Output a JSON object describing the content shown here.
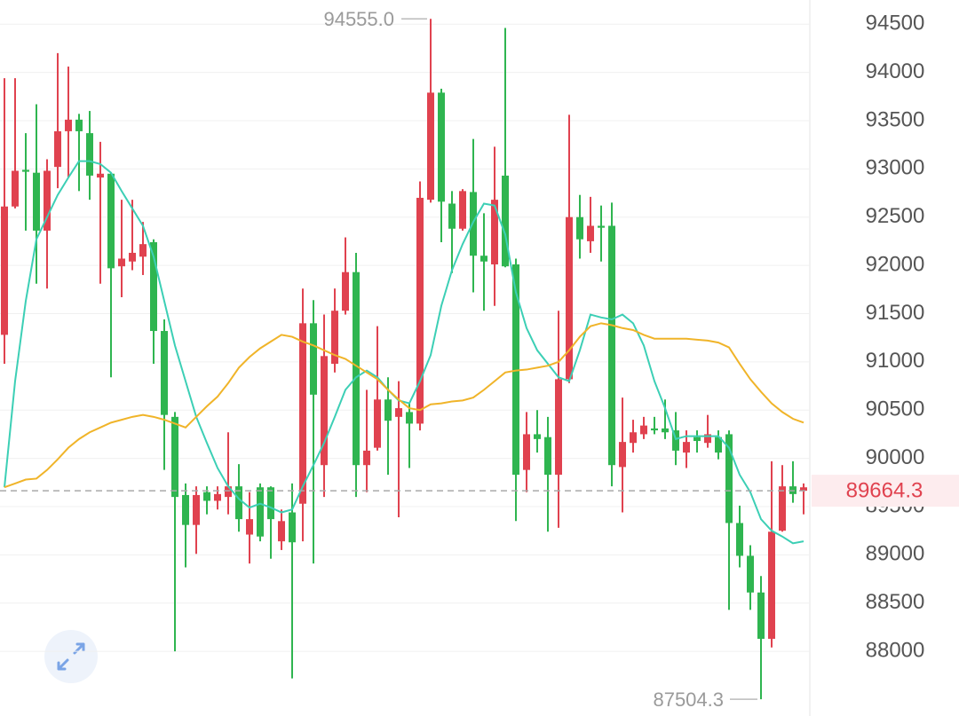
{
  "chart_data": {
    "type": "candlestick",
    "ylim": [
      87330,
      94750
    ],
    "yticks": [
      88000,
      88500,
      89000,
      89500,
      90000,
      90500,
      91000,
      91500,
      92000,
      92500,
      93000,
      93500,
      94000,
      94500
    ],
    "grid": true,
    "up_color": "#2fb550",
    "down_color": "#e0424f",
    "candles": {
      "open": [
        92610,
        92980,
        92970,
        92360,
        92980,
        93390,
        93510,
        93390,
        92930,
        92950,
        91970,
        92070,
        92130,
        92220,
        91320,
        90450,
        89600,
        89310,
        89620,
        89560,
        89630,
        89710,
        89370,
        89370,
        89190,
        89370,
        89350,
        89130,
        91400,
        90660,
        91060,
        91530,
        91930,
        89930,
        90080,
        90610,
        90390,
        90520,
        90360,
        92700,
        93790,
        92660,
        92380,
        92770,
        92100,
        92040,
        92680,
        91990,
        89830,
        90250,
        90200,
        89830,
        90820,
        92500,
        92270,
        92410,
        92390,
        89930,
        90170,
        90270,
        90340,
        90290,
        90270,
        90080,
        90170,
        90180,
        90250,
        90060,
        89330,
        88990,
        88610,
        88130,
        89240,
        89710,
        89630,
        89700
      ],
      "high": [
        93940,
        93940,
        93370,
        93670,
        93100,
        94200,
        94060,
        93570,
        93600,
        93280,
        92960,
        92680,
        92680,
        92450,
        92270,
        91440,
        90480,
        89740,
        89710,
        89710,
        89710,
        90270,
        89940,
        89650,
        89740,
        89710,
        89470,
        89740,
        91760,
        91640,
        91490,
        91760,
        92290,
        92130,
        90710,
        91370,
        90840,
        90800,
        90570,
        92870,
        94555,
        93830,
        92770,
        92790,
        93310,
        92540,
        93230,
        94460,
        92070,
        90480,
        90500,
        90430,
        91530,
        93560,
        92730,
        92710,
        92620,
        92650,
        90630,
        90400,
        90430,
        90430,
        90610,
        90480,
        90290,
        90290,
        90450,
        90290,
        90290,
        89510,
        89100,
        88780,
        89970,
        89930,
        89970,
        89740
      ],
      "low": [
        90980,
        92590,
        92360,
        91810,
        91760,
        92800,
        92910,
        92770,
        92680,
        91810,
        90840,
        91670,
        91950,
        91900,
        90980,
        89880,
        88000,
        88870,
        89010,
        89420,
        89470,
        89420,
        89240,
        88910,
        89140,
        88960,
        89050,
        87720,
        89140,
        88910,
        89600,
        90890,
        91490,
        89600,
        89650,
        90080,
        89830,
        89390,
        89900,
        90290,
        92650,
        92240,
        91920,
        92360,
        91720,
        91530,
        91580,
        91980,
        89350,
        89650,
        90060,
        89240,
        89280,
        90780,
        92070,
        92130,
        92040,
        89710,
        89440,
        90060,
        90200,
        90250,
        90200,
        89930,
        89900,
        90060,
        90110,
        89990,
        88430,
        88870,
        88430,
        87504,
        88040,
        89240,
        89540,
        89420
      ],
      "close": [
        91280,
        92610,
        92990,
        92960,
        92360,
        93020,
        93390,
        93510,
        93370,
        92910,
        92950,
        91990,
        92040,
        92090,
        92240,
        91320,
        90430,
        89620,
        89310,
        89650,
        89560,
        89600,
        89710,
        89210,
        89700,
        89700,
        89140,
        89440,
        89530,
        91400,
        89930,
        90980,
        91530,
        91930,
        89930,
        90110,
        90610,
        90430,
        90480,
        90360,
        92680,
        93790,
        92640,
        92380,
        92760,
        92100,
        92010,
        92930,
        92010,
        89880,
        90250,
        90220,
        89830,
        90820,
        92500,
        92250,
        92410,
        92410,
        89910,
        90160,
        90250,
        90310,
        90310,
        90290,
        90060,
        90220,
        90160,
        90220,
        90250,
        89330,
        88990,
        88610,
        88130,
        89250,
        89710,
        89664.3
      ]
    },
    "ma": [
      {
        "color": "#3ccfb5",
        "values": [
          89700,
          90800,
          91630,
          92270,
          92500,
          92730,
          92910,
          93080,
          93080,
          93050,
          92960,
          92770,
          92590,
          92410,
          92090,
          91630,
          91170,
          90800,
          90430,
          90160,
          89900,
          89710,
          89580,
          89490,
          89530,
          89490,
          89440,
          89470,
          89710,
          89930,
          90160,
          90430,
          90710,
          90840,
          90910,
          90840,
          90710,
          90600,
          90570,
          90800,
          91070,
          91580,
          91950,
          92220,
          92450,
          92640,
          92620,
          92320,
          91720,
          91350,
          91120,
          90980,
          90840,
          90800,
          91120,
          91490,
          91460,
          91440,
          91490,
          91400,
          91170,
          90800,
          90520,
          90200,
          90230,
          90230,
          90230,
          90230,
          90110,
          89830,
          89650,
          89370,
          89250,
          89190,
          89120,
          89140
        ]
      },
      {
        "color": "#f0b429",
        "values": [
          89700,
          89740,
          89780,
          89790,
          89880,
          89990,
          90110,
          90200,
          90270,
          90320,
          90370,
          90400,
          90430,
          90450,
          90430,
          90400,
          90360,
          90320,
          90430,
          90540,
          90640,
          90780,
          90940,
          91050,
          91140,
          91210,
          91280,
          91260,
          91210,
          91170,
          91120,
          91070,
          91030,
          90960,
          90890,
          90820,
          90710,
          90610,
          90520,
          90500,
          90560,
          90570,
          90590,
          90600,
          90630,
          90710,
          90800,
          90890,
          90910,
          90920,
          90940,
          90960,
          91000,
          91120,
          91260,
          91370,
          91400,
          91380,
          91350,
          91330,
          91280,
          91240,
          91240,
          91240,
          91240,
          91230,
          91220,
          91200,
          91150,
          90980,
          90820,
          90690,
          90570,
          90480,
          90410,
          90370
        ]
      }
    ],
    "max_label": {
      "value": 94555,
      "label": "94555.0"
    },
    "min_label": {
      "value": 87504,
      "label": "87504.3"
    },
    "last_price": 89664.3
  }
}
